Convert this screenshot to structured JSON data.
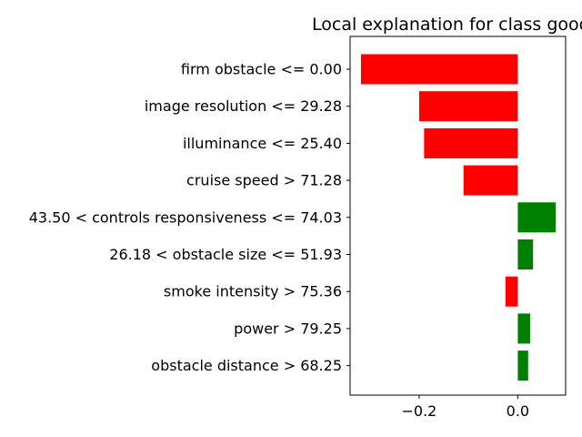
{
  "chart_data": {
    "type": "bar",
    "orientation": "horizontal",
    "title": "Local explanation for class good",
    "xlabel": "",
    "ylabel": "",
    "xlim": [
      -0.34,
      0.097
    ],
    "grid": false,
    "x_ticks": [
      -0.2,
      0.0
    ],
    "x_tick_labels": [
      "−0.2",
      "0.0"
    ],
    "colors": {
      "negative": "#ff0000",
      "positive": "#008000"
    },
    "categories": [
      "firm obstacle <= 0.00",
      "image resolution <= 29.28",
      "illuminance <= 25.40",
      "cruise speed > 71.28",
      "43.50 < controls responsiveness <= 74.03",
      "26.18 < obstacle size <= 51.93",
      "smoke intensity > 75.36",
      "power > 79.25",
      "obstacle distance > 68.25"
    ],
    "values": [
      -0.318,
      -0.2,
      -0.19,
      -0.11,
      0.077,
      0.031,
      -0.025,
      0.025,
      0.021
    ]
  }
}
